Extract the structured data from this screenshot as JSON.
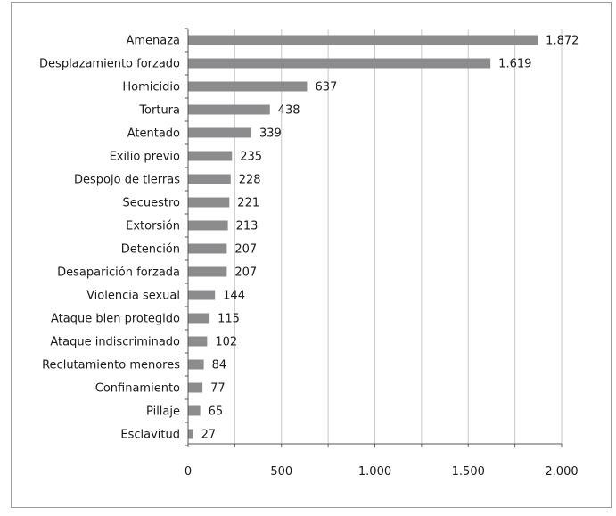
{
  "chart_data": {
    "type": "bar",
    "orientation": "horizontal",
    "categories": [
      "Amenaza",
      "Desplazamiento forzado",
      "Homicidio",
      "Tortura",
      "Atentado",
      "Exilio previo",
      "Despojo de tierras",
      "Secuestro",
      "Extorsión",
      "Detención",
      "Desaparición forzada",
      "Violencia sexual",
      "Ataque bien protegido",
      "Ataque indiscriminado",
      "Reclutamiento menores",
      "Confinamiento",
      "Pillaje",
      "Esclavitud"
    ],
    "values": [
      1872,
      1619,
      637,
      438,
      339,
      235,
      228,
      221,
      213,
      207,
      207,
      144,
      115,
      102,
      84,
      77,
      65,
      27
    ],
    "value_labels": [
      "1.872",
      "1.619",
      "637",
      "438",
      "339",
      "235",
      "228",
      "221",
      "213",
      "207",
      "207",
      "144",
      "115",
      "102",
      "84",
      "77",
      "65",
      "27"
    ],
    "xlim": [
      0,
      2000
    ],
    "x_ticks": [
      0,
      500,
      1000,
      1500,
      2000
    ],
    "x_tick_labels": [
      "0",
      "500",
      "1.000",
      "1.500",
      "2.000"
    ],
    "x_minor_gridlines": [
      250,
      750,
      1250,
      1750
    ],
    "grid": true,
    "title": "",
    "xlabel": "",
    "ylabel": "",
    "colors": {
      "bar": "#8c8c8e",
      "grid": "#c8c8c8",
      "axis": "#555555"
    }
  }
}
